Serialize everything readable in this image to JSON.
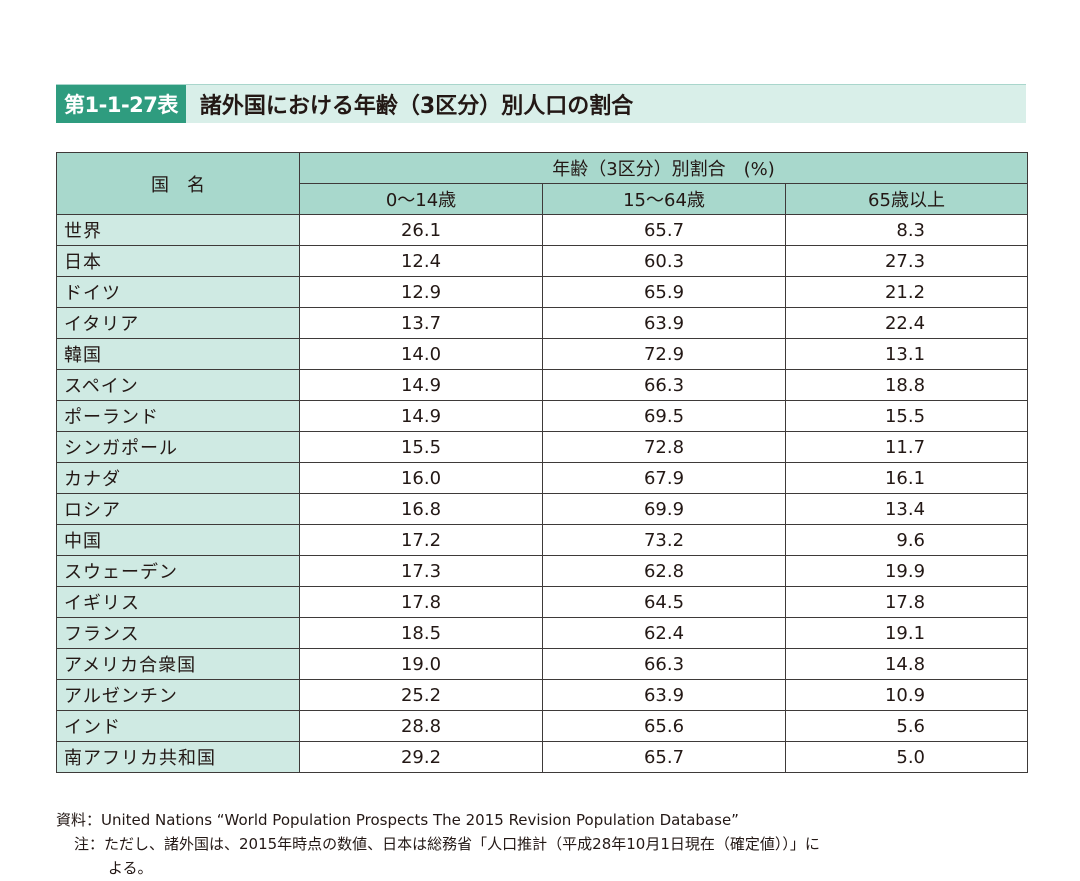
{
  "title": {
    "label": "第1-1-27表",
    "text": "諸外国における年齢（3区分）別人口の割合"
  },
  "table": {
    "country_header": "国　名",
    "group_header": "年齢（3区分）別割合　(%)",
    "columns": [
      "0〜14歳",
      "15〜64歳",
      "65歳以上"
    ],
    "rows": [
      {
        "country": "世界",
        "values": [
          "26.1",
          "65.7",
          "8.3"
        ]
      },
      {
        "country": "日本",
        "values": [
          "12.4",
          "60.3",
          "27.3"
        ]
      },
      {
        "country": "ドイツ",
        "values": [
          "12.9",
          "65.9",
          "21.2"
        ]
      },
      {
        "country": "イタリア",
        "values": [
          "13.7",
          "63.9",
          "22.4"
        ]
      },
      {
        "country": "韓国",
        "values": [
          "14.0",
          "72.9",
          "13.1"
        ]
      },
      {
        "country": "スペイン",
        "values": [
          "14.9",
          "66.3",
          "18.8"
        ]
      },
      {
        "country": "ポーランド",
        "values": [
          "14.9",
          "69.5",
          "15.5"
        ]
      },
      {
        "country": "シンガポール",
        "values": [
          "15.5",
          "72.8",
          "11.7"
        ]
      },
      {
        "country": "カナダ",
        "values": [
          "16.0",
          "67.9",
          "16.1"
        ]
      },
      {
        "country": "ロシア",
        "values": [
          "16.8",
          "69.9",
          "13.4"
        ]
      },
      {
        "country": "中国",
        "values": [
          "17.2",
          "73.2",
          "9.6"
        ]
      },
      {
        "country": "スウェーデン",
        "values": [
          "17.3",
          "62.8",
          "19.9"
        ]
      },
      {
        "country": "イギリス",
        "values": [
          "17.8",
          "64.5",
          "17.8"
        ]
      },
      {
        "country": "フランス",
        "values": [
          "18.5",
          "62.4",
          "19.1"
        ]
      },
      {
        "country": "アメリカ合衆国",
        "values": [
          "19.0",
          "66.3",
          "14.8"
        ]
      },
      {
        "country": "アルゼンチン",
        "values": [
          "25.2",
          "63.9",
          "10.9"
        ]
      },
      {
        "country": "インド",
        "values": [
          "28.8",
          "65.6",
          "5.6"
        ]
      },
      {
        "country": "南アフリカ共和国",
        "values": [
          "29.2",
          "65.7",
          "5.0"
        ]
      }
    ]
  },
  "notes": {
    "source": "資料：United Nations “World Population Prospects The 2015 Revision Population Database”",
    "note1": "注：ただし、諸外国は、2015年時点の数値、日本は総務省「人口推計（平成28年10月1日現在（確定値））」に",
    "note2": "よる。"
  },
  "colors": {
    "label_bg": "#2f9c7f",
    "title_bg": "#d9efe9",
    "header_bg": "#a8d8cc",
    "country_bg": "#cfeae3"
  }
}
